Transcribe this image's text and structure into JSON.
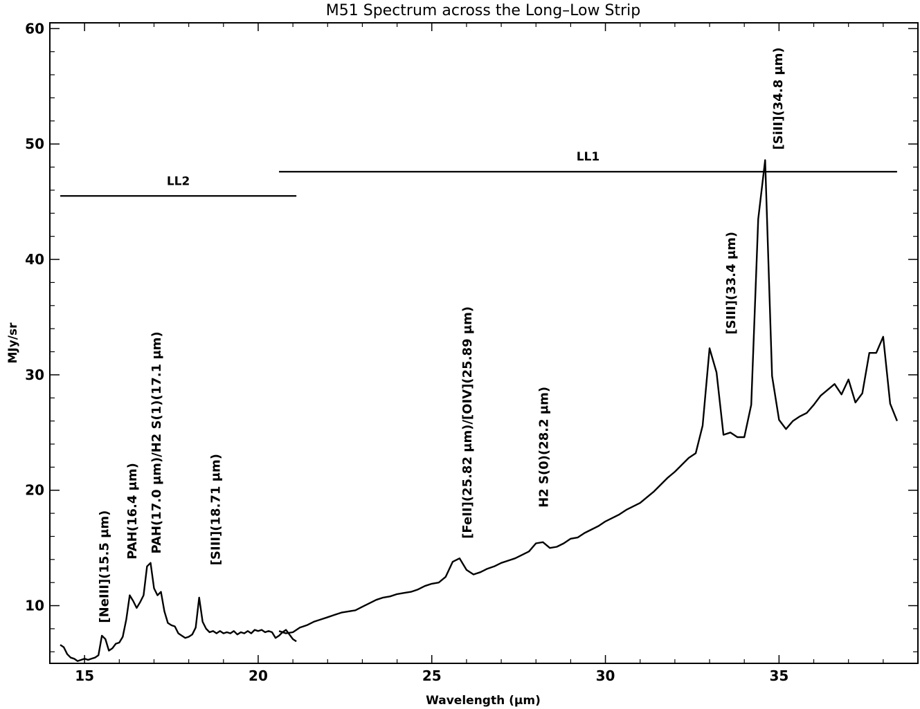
{
  "chart_data": {
    "type": "line",
    "title": "M51 Spectrum across the Long–Low Strip",
    "xlabel": "Wavelength (μm)",
    "ylabel": "MJy/sr",
    "xlim": [
      14.0,
      39.0
    ],
    "ylim": [
      5.0,
      60.5
    ],
    "xticks": [
      15,
      20,
      25,
      30,
      35
    ],
    "yticks": [
      10,
      20,
      30,
      40,
      50,
      60
    ],
    "grid": false,
    "series": [
      {
        "id": "LL2",
        "x": [
          14.3,
          14.4,
          14.5,
          14.6,
          14.7,
          14.8,
          14.9,
          15.0,
          15.1,
          15.2,
          15.3,
          15.4,
          15.5,
          15.6,
          15.7,
          15.8,
          15.9,
          16.0,
          16.1,
          16.2,
          16.3,
          16.4,
          16.5,
          16.6,
          16.7,
          16.8,
          16.9,
          17.0,
          17.1,
          17.2,
          17.3,
          17.4,
          17.5,
          17.6,
          17.7,
          17.8,
          17.9,
          18.0,
          18.1,
          18.2,
          18.3,
          18.4,
          18.5,
          18.6,
          18.7,
          18.8,
          18.9,
          19.0,
          19.1,
          19.2,
          19.3,
          19.4,
          19.5,
          19.6,
          19.7,
          19.8,
          19.9,
          20.0,
          20.1,
          20.2,
          20.3,
          20.4,
          20.5,
          20.6,
          20.7,
          20.8,
          20.9,
          21.0,
          21.1
        ],
        "y": [
          6.6,
          6.4,
          5.8,
          5.5,
          5.4,
          5.2,
          5.3,
          5.4,
          5.3,
          5.4,
          5.5,
          5.7,
          7.4,
          7.1,
          6.1,
          6.3,
          6.7,
          6.8,
          7.3,
          8.8,
          10.9,
          10.4,
          9.8,
          10.3,
          10.9,
          13.4,
          13.7,
          11.5,
          10.9,
          11.2,
          9.5,
          8.5,
          8.3,
          8.2,
          7.6,
          7.4,
          7.2,
          7.3,
          7.5,
          8.1,
          10.7,
          8.6,
          8.0,
          7.7,
          7.8,
          7.6,
          7.8,
          7.6,
          7.7,
          7.6,
          7.8,
          7.5,
          7.7,
          7.6,
          7.8,
          7.6,
          7.9,
          7.8,
          7.9,
          7.7,
          7.8,
          7.7,
          7.2,
          7.4,
          7.7,
          7.9,
          7.5,
          7.1,
          6.9
        ]
      },
      {
        "id": "LL1",
        "x": [
          20.6,
          20.8,
          21.0,
          21.2,
          21.4,
          21.6,
          21.8,
          22.0,
          22.2,
          22.4,
          22.6,
          22.8,
          23.0,
          23.2,
          23.4,
          23.6,
          23.8,
          24.0,
          24.2,
          24.4,
          24.6,
          24.8,
          25.0,
          25.2,
          25.4,
          25.6,
          25.8,
          26.0,
          26.2,
          26.4,
          26.6,
          26.8,
          27.0,
          27.2,
          27.4,
          27.6,
          27.8,
          28.0,
          28.2,
          28.4,
          28.6,
          28.8,
          29.0,
          29.2,
          29.4,
          29.6,
          29.8,
          30.0,
          30.2,
          30.4,
          30.6,
          30.8,
          31.0,
          31.2,
          31.4,
          31.6,
          31.8,
          32.0,
          32.2,
          32.4,
          32.6,
          32.8,
          33.0,
          33.2,
          33.4,
          33.6,
          33.8,
          34.0,
          34.2,
          34.4,
          34.6,
          34.8,
          35.0,
          35.2,
          35.4,
          35.6,
          35.8,
          36.0,
          36.2,
          36.4,
          36.6,
          36.8,
          37.0,
          37.2,
          37.4,
          37.6,
          37.8,
          38.0,
          38.2,
          38.4
        ],
        "y": [
          7.8,
          7.6,
          7.7,
          8.1,
          8.3,
          8.6,
          8.8,
          9.0,
          9.2,
          9.4,
          9.5,
          9.6,
          9.9,
          10.2,
          10.5,
          10.7,
          10.8,
          11.0,
          11.1,
          11.2,
          11.4,
          11.7,
          11.9,
          12.0,
          12.5,
          13.8,
          14.1,
          13.1,
          12.7,
          12.9,
          13.2,
          13.4,
          13.7,
          13.9,
          14.1,
          14.4,
          14.7,
          15.4,
          15.5,
          15.0,
          15.1,
          15.4,
          15.8,
          15.9,
          16.3,
          16.6,
          16.9,
          17.3,
          17.6,
          17.9,
          18.3,
          18.6,
          18.9,
          19.4,
          19.9,
          20.5,
          21.1,
          21.6,
          22.2,
          22.8,
          23.2,
          25.6,
          32.3,
          30.2,
          24.8,
          25.0,
          24.6,
          24.6,
          27.4,
          43.5,
          48.6,
          29.9,
          26.1,
          25.3,
          26.0,
          26.4,
          26.7,
          27.4,
          28.2,
          28.7,
          29.2,
          28.3,
          29.6,
          27.6,
          28.4,
          31.9,
          31.9,
          33.3,
          27.5,
          26.0
        ]
      }
    ],
    "bands": [
      {
        "label": "LL2",
        "x_start": 14.3,
        "x_end": 21.1,
        "y": 45.5
      },
      {
        "label": "LL1",
        "x_start": 20.6,
        "x_end": 38.4,
        "y": 47.6
      }
    ],
    "annotations": [
      {
        "text": "[NeIII](15.5 μm)",
        "x": 15.55,
        "y": 8.5
      },
      {
        "text": "PAH(16.4 μm)",
        "x": 16.35,
        "y": 14.0
      },
      {
        "text": "PAH(17.0 μm)/H2 S(1)(17.1 μm)",
        "x": 17.05,
        "y": 14.5
      },
      {
        "text": "[SIII](18.71 μm)",
        "x": 18.75,
        "y": 13.5
      },
      {
        "text": "[FeII](25.82 μm)/[OIV](25.89 μm)",
        "x": 26.0,
        "y": 15.8
      },
      {
        "text": "H2 S(0)(28.2 μm)",
        "x": 28.2,
        "y": 18.5
      },
      {
        "text": "[SIII](33.4 μm)",
        "x": 33.6,
        "y": 33.5
      },
      {
        "text": "[SiII](34.8 μm)",
        "x": 34.95,
        "y": 49.5
      }
    ]
  }
}
